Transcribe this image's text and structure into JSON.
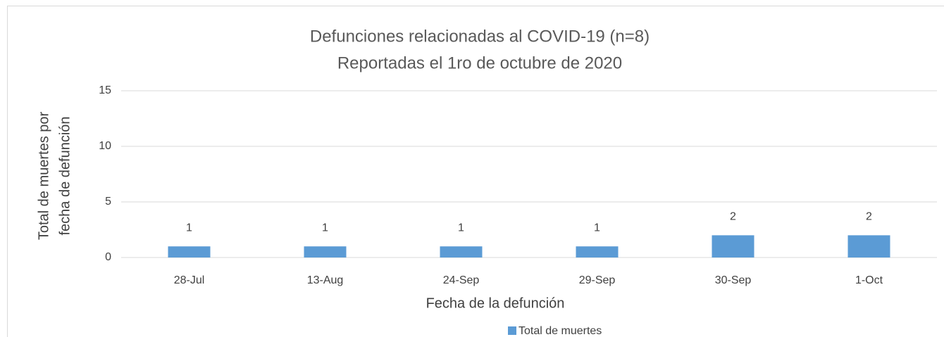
{
  "chart_data": {
    "type": "bar",
    "title": "Defunciones relacionadas al COVID-19 (n=8)",
    "subtitle": "Reportadas el 1ro de octubre de 2020",
    "x_label": "Fecha de la defunción",
    "y_label": [
      "Total de muertes  por",
      "fecha de defunción"
    ],
    "categories": [
      "28-Jul",
      "13-Aug",
      "24-Sep",
      "29-Sep",
      "30-Sep",
      "1-Oct"
    ],
    "series": [
      {
        "name": "Total de muertes",
        "color": "#5b9bd5",
        "values": [
          1,
          1,
          1,
          1,
          2,
          2
        ]
      }
    ],
    "ylim": [
      0,
      15
    ],
    "yticks": [
      0,
      5,
      10,
      15
    ],
    "grid": true,
    "legend": "bottom"
  }
}
